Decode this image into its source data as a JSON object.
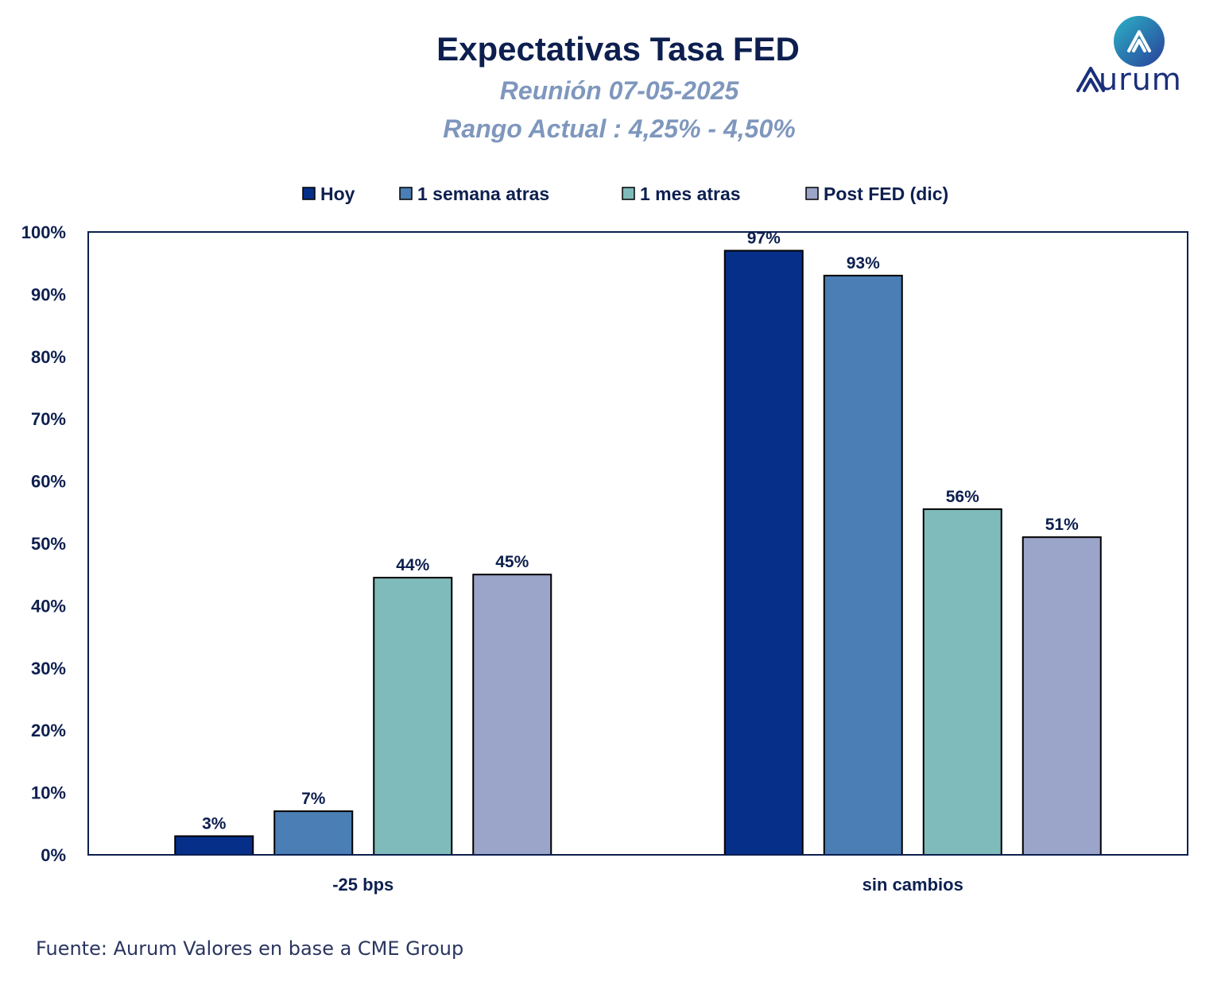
{
  "header": {
    "title": "Expectativas Tasa FED",
    "subtitle1": "Reunión 07-05-2025",
    "subtitle2": "Rango Actual : 4,25% - 4,50%"
  },
  "logo": {
    "text": "urum",
    "icon": "aurum-logo-icon"
  },
  "footer": {
    "source": "Fuente: Aurum Valores en base a CME Group"
  },
  "colors": {
    "hoy": "#062f8a",
    "semana": "#4a7eb4",
    "mes": "#80bbbb",
    "post": "#9ba5c9",
    "text": "#0d1f4f"
  },
  "chart_data": {
    "type": "bar",
    "title": "Expectativas Tasa FED",
    "xlabel": "",
    "ylabel": "",
    "ylim": [
      0,
      100
    ],
    "yticks": [
      "0%",
      "10%",
      "20%",
      "30%",
      "40%",
      "50%",
      "60%",
      "70%",
      "80%",
      "90%",
      "100%"
    ],
    "legend_position": "top",
    "grid": false,
    "categories": [
      "-25 bps",
      "sin cambios"
    ],
    "series": [
      {
        "name": "Hoy",
        "values": [
          3,
          97
        ],
        "labels": [
          "3%",
          "97%"
        ]
      },
      {
        "name": "1 semana atras",
        "values": [
          7,
          93
        ],
        "labels": [
          "7%",
          "93%"
        ]
      },
      {
        "name": "1 mes atras",
        "values": [
          44.5,
          55.5
        ],
        "labels": [
          "44%",
          "56%"
        ]
      },
      {
        "name": "Post FED (dic)",
        "values": [
          45,
          51
        ],
        "labels": [
          "45%",
          "51%"
        ]
      }
    ]
  }
}
